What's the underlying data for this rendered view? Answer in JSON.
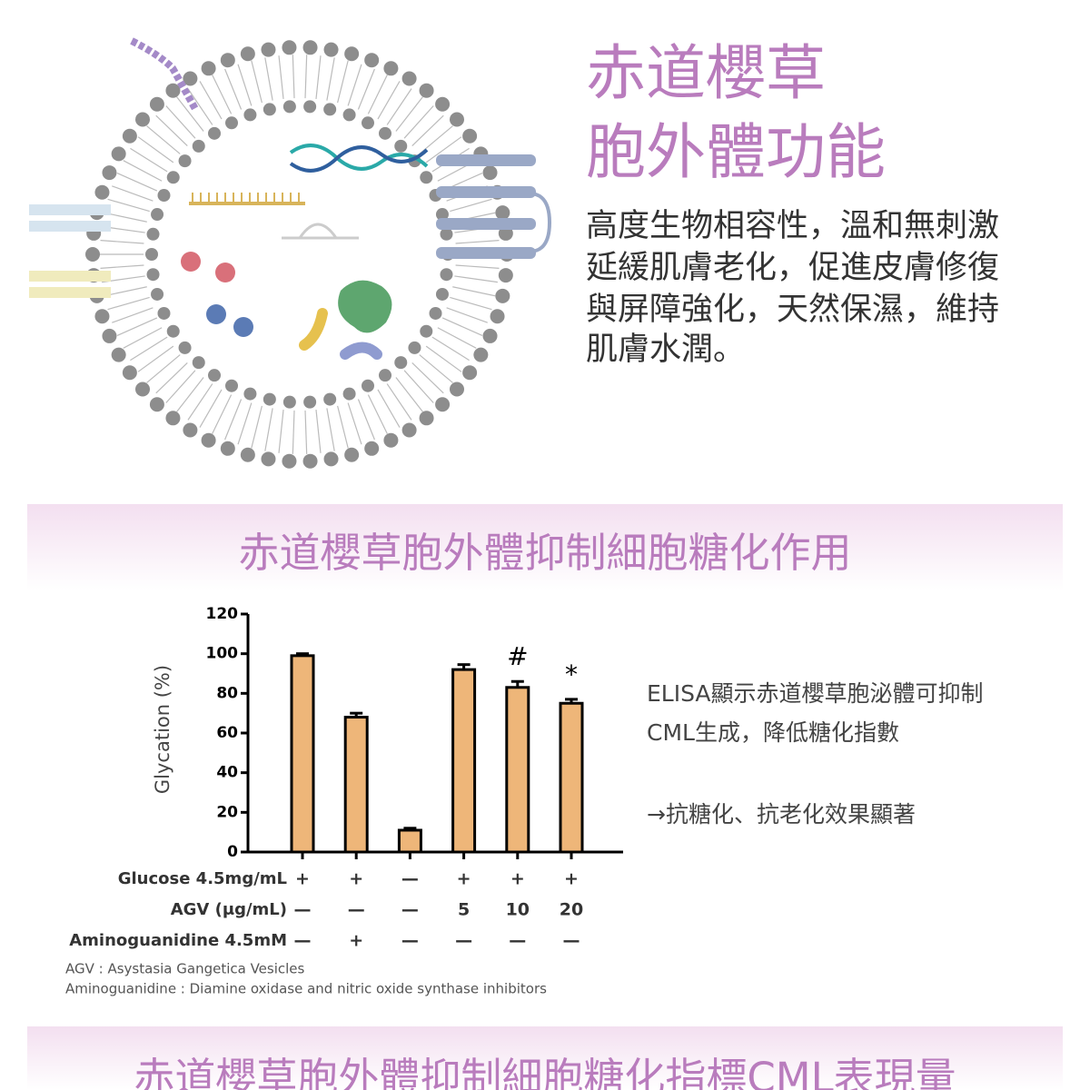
{
  "intro": {
    "title_lines": [
      "赤道櫻草",
      "胞外體功能"
    ],
    "text_lines": [
      "高度生物相容性，溫和無刺激",
      "延緩肌膚老化，促進皮膚修復",
      "與屏障強化，天然保濕，維持",
      "肌膚水潤。"
    ]
  },
  "section1": {
    "title": "赤道櫻草胞外體抑制細胞糖化作用",
    "side_text": [
      "ELISA顯示赤道櫻草胞泌體可抑制",
      "CML生成，降低糖化指數",
      "→抗糖化、抗老化效果顯著"
    ],
    "footnotes": [
      "AGV : Asystasia Gangetica Vesicles",
      "Aminoguanidine : Diamine oxidase and nitric oxide synthase inhibitors"
    ]
  },
  "chart_data": {
    "type": "bar",
    "y_label": "Glycation (%)",
    "values": [
      99,
      68,
      11,
      92,
      83,
      75
    ],
    "errors": [
      1,
      2,
      1,
      2.5,
      3,
      2
    ],
    "value_annotations": [
      null,
      null,
      null,
      null,
      "#",
      "*"
    ],
    "color": "#eeb679",
    "ylim": [
      0,
      120
    ],
    "yticks": [
      0,
      20,
      40,
      60,
      80,
      100,
      120
    ],
    "treatments": [
      {
        "label": "Glucose  4.5mg/mL",
        "cells": [
          "+",
          "+",
          "—",
          "+",
          "+",
          "+"
        ]
      },
      {
        "label": "AGV (μg/mL)",
        "cells": [
          "—",
          "—",
          "—",
          "5",
          "10",
          "20"
        ]
      },
      {
        "label": "Aminoguanidine 4.5mM",
        "cells": [
          "—",
          "+",
          "—",
          "—",
          "—",
          "—"
        ]
      }
    ]
  },
  "section2": {
    "title": "赤道櫻草胞外體抑制細胞糖化指標CML表現量"
  }
}
